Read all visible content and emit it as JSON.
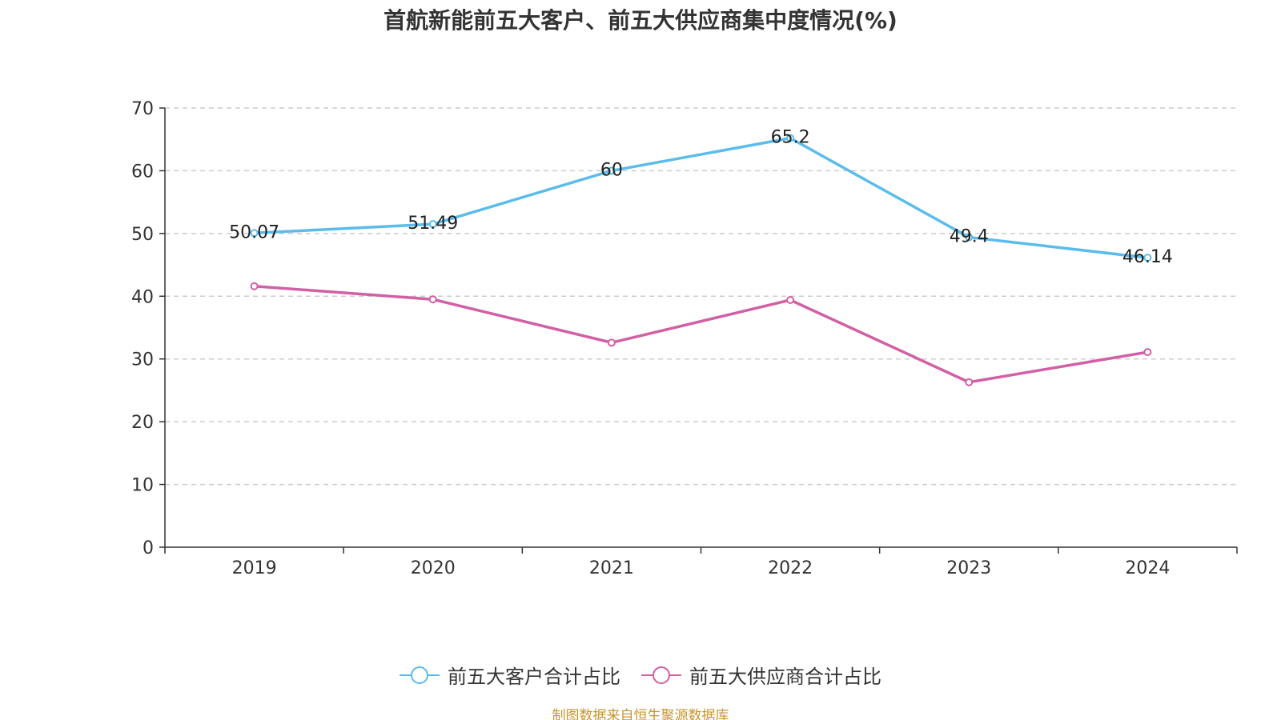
{
  "title": "首航新能前五大客户、前五大供应商集中度情况(%)",
  "source": "制图数据来自恒生聚源数据库",
  "colors": {
    "customers": "#5bbcec",
    "suppliers": "#d160a4",
    "axis": "#333333",
    "grid": "#cccccc",
    "text": "#333333"
  },
  "chart_data": {
    "type": "line",
    "title": "首航新能前五大客户、前五大供应商集中度情况(%)",
    "categories": [
      "2019",
      "2020",
      "2021",
      "2022",
      "2023",
      "2024"
    ],
    "ylim": [
      0,
      70
    ],
    "yticks": [
      0,
      10,
      20,
      30,
      40,
      50,
      60,
      70
    ],
    "grid": true,
    "legend_position": "bottom-center",
    "series": [
      {
        "name": "前五大客户合计占比",
        "values": [
          50.07,
          51.49,
          60,
          65.2,
          49.4,
          46.14
        ],
        "labels": [
          "50.07",
          "51.49",
          "60",
          "65.2",
          "49.4",
          "46.14"
        ],
        "show_labels": true,
        "color": "#5bbcec"
      },
      {
        "name": "前五大供应商合计占比",
        "values": [
          41.6,
          39.5,
          32.6,
          39.4,
          26.3,
          31.1
        ],
        "show_labels": false,
        "color": "#d160a4"
      }
    ]
  }
}
